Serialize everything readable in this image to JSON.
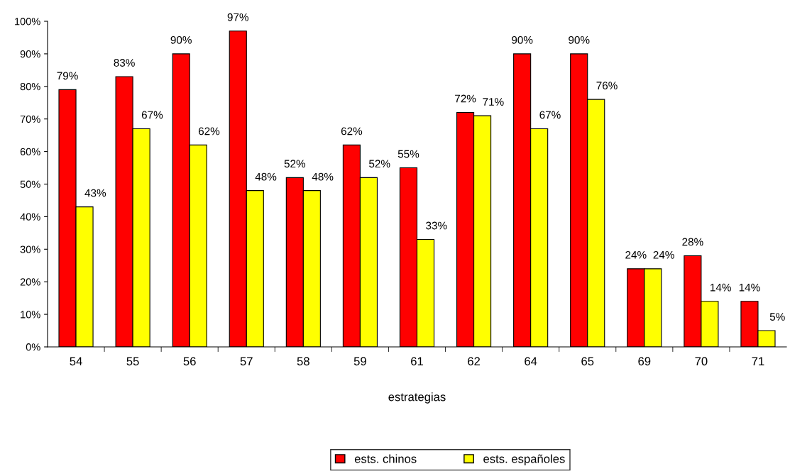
{
  "chart_data": {
    "type": "bar",
    "xlabel": "estrategias",
    "categories": [
      "54",
      "55",
      "56",
      "57",
      "58",
      "59",
      "61",
      "62",
      "64",
      "65",
      "69",
      "70",
      "71"
    ],
    "series": [
      {
        "name": "ests. chinos",
        "color": "#ff0000",
        "values": [
          79,
          83,
          90,
          97,
          52,
          62,
          55,
          72,
          90,
          90,
          24,
          28,
          14
        ],
        "value_labels": [
          "79%",
          "83%",
          "90%",
          "97%",
          "52%",
          "62%",
          "55%",
          "72%",
          "90%",
          "90%",
          "24%",
          "28%",
          "14%"
        ]
      },
      {
        "name": "ests. españoles",
        "color": "#ffff00",
        "values": [
          43,
          67,
          62,
          48,
          48,
          52,
          33,
          71,
          67,
          76,
          24,
          14,
          5
        ],
        "value_labels": [
          "43%",
          "67%",
          "62%",
          "48%",
          "48%",
          "52%",
          "33%",
          "71%",
          "67%",
          "76%",
          "24%",
          "14%",
          "5%"
        ]
      }
    ],
    "ylim": [
      0,
      100
    ],
    "yticks": [
      {
        "value": 0,
        "label": "0%"
      },
      {
        "value": 10,
        "label": "10%"
      },
      {
        "value": 20,
        "label": "20%"
      },
      {
        "value": 30,
        "label": "30%"
      },
      {
        "value": 40,
        "label": "40%"
      },
      {
        "value": 50,
        "label": "50%"
      },
      {
        "value": 60,
        "label": "60%"
      },
      {
        "value": 70,
        "label": "70%"
      },
      {
        "value": 80,
        "label": "80%"
      },
      {
        "value": 90,
        "label": "90%"
      },
      {
        "value": 100,
        "label": "100%"
      }
    ],
    "grid": false,
    "legend": "bottom"
  }
}
